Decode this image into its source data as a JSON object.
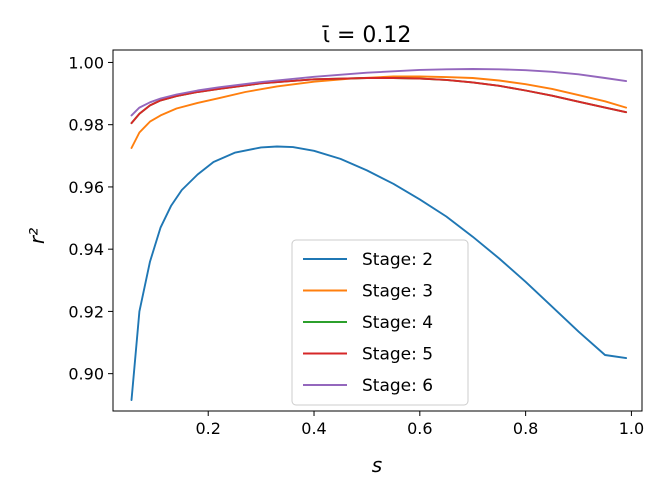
{
  "chart_data": {
    "type": "line",
    "title": "ῑ = 0.12",
    "xlabel": "s",
    "ylabel": "r²",
    "xlim": [
      0.02,
      1.02
    ],
    "ylim": [
      0.888,
      1.004
    ],
    "xticks": [
      "0.2",
      "0.4",
      "0.6",
      "0.8",
      "1.0"
    ],
    "yticks": [
      "0.90",
      "0.92",
      "0.94",
      "0.96",
      "0.98",
      "1.00"
    ],
    "grid": false,
    "legend_position": "lower-center",
    "series": [
      {
        "name": "Stage: 2",
        "color": "#1f77b4",
        "x": [
          0.055,
          0.07,
          0.09,
          0.11,
          0.13,
          0.15,
          0.18,
          0.21,
          0.25,
          0.3,
          0.33,
          0.36,
          0.4,
          0.45,
          0.5,
          0.55,
          0.6,
          0.65,
          0.7,
          0.75,
          0.8,
          0.85,
          0.9,
          0.95,
          0.99
        ],
        "y": [
          0.8915,
          0.92,
          0.936,
          0.947,
          0.954,
          0.959,
          0.964,
          0.968,
          0.971,
          0.9727,
          0.973,
          0.9728,
          0.9716,
          0.969,
          0.9653,
          0.961,
          0.956,
          0.9505,
          0.944,
          0.937,
          0.9295,
          0.9215,
          0.9135,
          0.906,
          0.905
        ]
      },
      {
        "name": "Stage: 3",
        "color": "#ff7f0e",
        "x": [
          0.055,
          0.07,
          0.09,
          0.11,
          0.14,
          0.18,
          0.22,
          0.27,
          0.33,
          0.4,
          0.47,
          0.55,
          0.6,
          0.65,
          0.7,
          0.75,
          0.8,
          0.85,
          0.9,
          0.95,
          0.99
        ],
        "y": [
          0.9725,
          0.9775,
          0.981,
          0.983,
          0.9852,
          0.987,
          0.9885,
          0.9905,
          0.9923,
          0.9938,
          0.9948,
          0.9955,
          0.9955,
          0.9953,
          0.995,
          0.9942,
          0.993,
          0.9915,
          0.9895,
          0.9875,
          0.9855
        ]
      },
      {
        "name": "Stage: 4",
        "color": "#2ca02c",
        "x": [
          0.055,
          0.07,
          0.09,
          0.11,
          0.14,
          0.18,
          0.22,
          0.3,
          0.4,
          0.5,
          0.55,
          0.6,
          0.65,
          0.7,
          0.75,
          0.8,
          0.85,
          0.9,
          0.95,
          0.99
        ],
        "y": [
          0.9805,
          0.9835,
          0.9862,
          0.9878,
          0.9892,
          0.9905,
          0.9915,
          0.9933,
          0.9946,
          0.995,
          0.995,
          0.9948,
          0.9944,
          0.9936,
          0.9925,
          0.991,
          0.9893,
          0.9874,
          0.9855,
          0.984
        ]
      },
      {
        "name": "Stage: 5",
        "color": "#d62728",
        "x": [
          0.055,
          0.07,
          0.09,
          0.11,
          0.14,
          0.18,
          0.22,
          0.3,
          0.4,
          0.5,
          0.55,
          0.6,
          0.65,
          0.7,
          0.75,
          0.8,
          0.85,
          0.9,
          0.95,
          0.99
        ],
        "y": [
          0.9805,
          0.9835,
          0.9862,
          0.9878,
          0.9892,
          0.9905,
          0.9915,
          0.9933,
          0.9946,
          0.995,
          0.995,
          0.9948,
          0.9944,
          0.9936,
          0.9925,
          0.991,
          0.9893,
          0.9874,
          0.9855,
          0.984
        ]
      },
      {
        "name": "Stage: 6",
        "color": "#9467bd",
        "x": [
          0.055,
          0.07,
          0.09,
          0.11,
          0.14,
          0.18,
          0.22,
          0.3,
          0.4,
          0.5,
          0.6,
          0.65,
          0.7,
          0.75,
          0.8,
          0.85,
          0.9,
          0.95,
          0.99
        ],
        "y": [
          0.983,
          0.9855,
          0.9872,
          0.9884,
          0.9897,
          0.991,
          0.992,
          0.9937,
          0.9954,
          0.9967,
          0.9976,
          0.9978,
          0.9979,
          0.9978,
          0.9975,
          0.997,
          0.9962,
          0.995,
          0.994
        ]
      }
    ]
  }
}
